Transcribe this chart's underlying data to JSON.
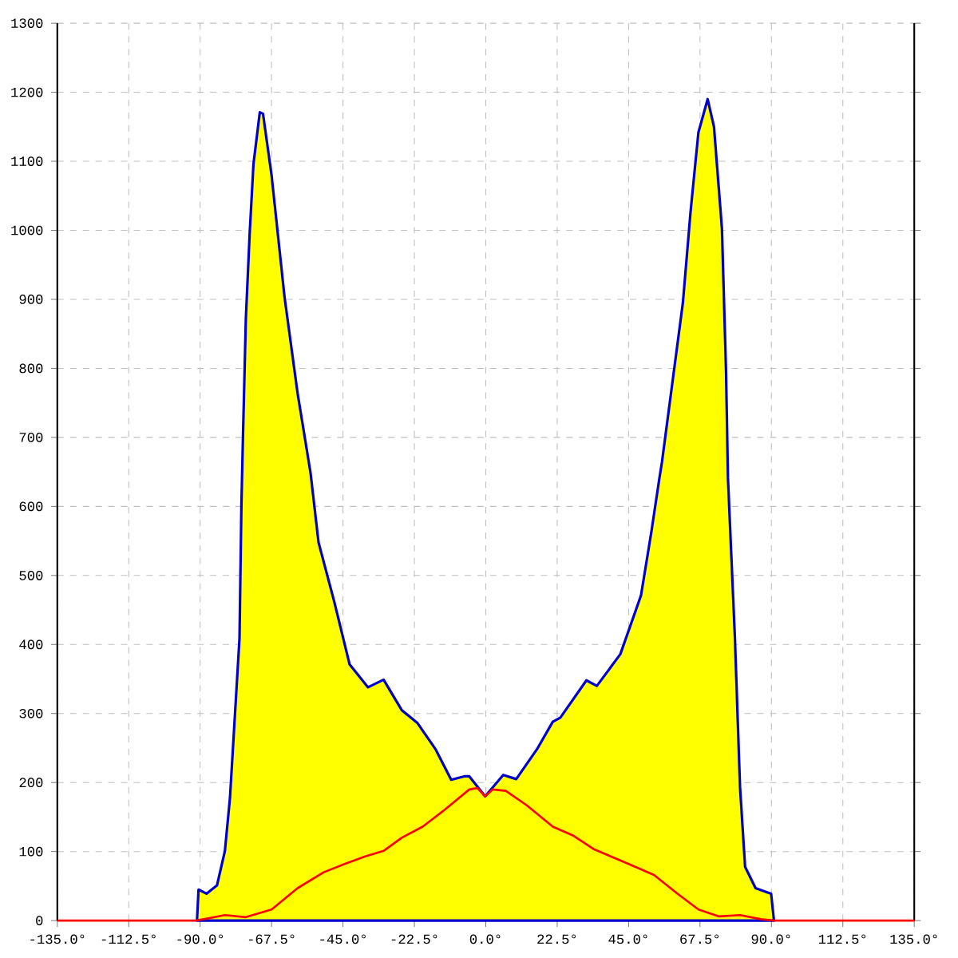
{
  "chart_data": {
    "type": "area",
    "xlim": [
      -135,
      135
    ],
    "ylim": [
      0,
      1300
    ],
    "xticks": [
      {
        "value": -135,
        "label": "-135.0°"
      },
      {
        "value": -112.5,
        "label": "-112.5°"
      },
      {
        "value": -90,
        "label": "-90.0°"
      },
      {
        "value": -67.5,
        "label": "-67.5°"
      },
      {
        "value": -45,
        "label": "-45.0°"
      },
      {
        "value": -22.5,
        "label": "-22.5°"
      },
      {
        "value": 0,
        "label": "0.0°"
      },
      {
        "value": 22.5,
        "label": "22.5°"
      },
      {
        "value": 45,
        "label": "45.0°"
      },
      {
        "value": 67.5,
        "label": "67.5°"
      },
      {
        "value": 90,
        "label": "90.0°"
      },
      {
        "value": 112.5,
        "label": "112.5°"
      },
      {
        "value": 135,
        "label": "135.0°"
      }
    ],
    "yticks": [
      0,
      100,
      200,
      300,
      400,
      500,
      600,
      700,
      800,
      900,
      1000,
      1100,
      1200,
      1300
    ],
    "grid": true,
    "marker": "none",
    "line_style": "solid",
    "series": [
      {
        "color": "#ffff00",
        "x": [
          -91,
          -90.5,
          -88,
          -84.7,
          -82.2,
          -80.6,
          -79,
          -77.6,
          -77,
          -76.5,
          -75.6,
          -74.4,
          -73.2,
          -71.2,
          -70.2,
          -67.5,
          -63.4,
          -59.3,
          -55.2,
          -52.7,
          -47.8,
          -42.9,
          -37.1,
          -32.2,
          -26.5,
          -21.5,
          -15.8,
          -10.9,
          -6.8,
          -5.2,
          -0.2,
          5.5,
          9.6,
          16.1,
          21.1,
          23.5,
          31.7,
          35,
          42.4,
          48.9,
          52.2,
          54.7,
          55.5,
          62.1,
          64.5,
          67,
          69.9,
          71.9,
          74.4,
          75.7,
          76.3,
          78.5,
          80.1,
          81.7,
          85,
          89.9,
          90.8
        ],
        "values": [
          0,
          45,
          39,
          51,
          101,
          178,
          301,
          409,
          602,
          702,
          872,
          995,
          1096,
          1171,
          1169,
          1080,
          903,
          764,
          648,
          548,
          463,
          371,
          338,
          349,
          305,
          286,
          248,
          204,
          209,
          209,
          180,
          211,
          205,
          248,
          288,
          294,
          348,
          340,
          386,
          471,
          564,
          641,
          664,
          895,
          1026,
          1142,
          1190,
          1150,
          1003,
          795,
          641,
          409,
          194,
          78,
          47,
          39,
          0
        ]
      },
      {
        "type": "line",
        "color": "#ff0000",
        "x": [
          -135,
          -91.2,
          -82.2,
          -75.6,
          -67.5,
          -59.3,
          -51.1,
          -44.5,
          -38,
          -32.2,
          -26.5,
          -19.9,
          -13.4,
          -5.2,
          -2.7,
          -0.2,
          2.2,
          6.3,
          12.9,
          21.1,
          27.6,
          34.2,
          44,
          53,
          60.4,
          67,
          73.5,
          80.1,
          86.7,
          90.8,
          135
        ],
        "values": [
          0,
          0,
          8,
          5,
          16,
          47,
          70,
          82,
          93,
          101,
          120,
          136,
          159,
          190,
          192,
          180,
          190,
          188,
          167,
          136,
          123,
          103,
          84,
          66,
          39,
          16,
          6,
          8,
          2,
          0,
          0
        ]
      }
    ]
  }
}
